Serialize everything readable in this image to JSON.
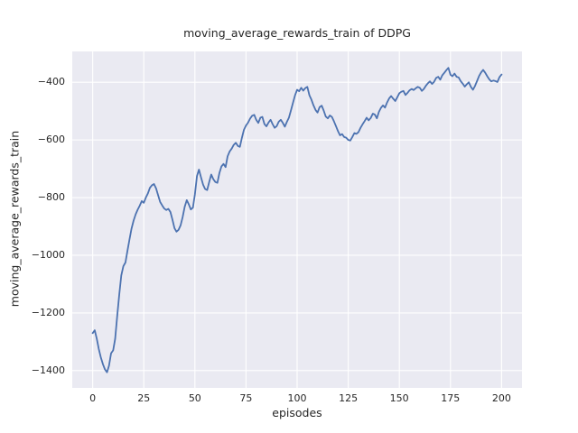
{
  "chart_data": {
    "type": "line",
    "title": "moving_average_rewards_train of DDPG",
    "xlabel": "episodes",
    "ylabel": "moving_average_rewards_train",
    "xlim": [
      -10,
      210
    ],
    "ylim": [
      -1460,
      -293
    ],
    "xticks": [
      0,
      25,
      50,
      75,
      100,
      125,
      150,
      175,
      200
    ],
    "xtick_labels": [
      "0",
      "25",
      "50",
      "75",
      "100",
      "125",
      "150",
      "175",
      "200"
    ],
    "yticks": [
      -1400,
      -1200,
      -1000,
      -800,
      -600,
      -400
    ],
    "ytick_labels": [
      "−1400",
      "−1200",
      "−1000",
      "−800",
      "−600",
      "−400"
    ],
    "grid": true,
    "legend": false,
    "plot_bg_color": "#eaeaf2",
    "grid_color": "#ffffff",
    "line_color": "#4c72b0",
    "text_color": "#262626",
    "series": [
      {
        "name": "moving_average_rewards_train",
        "x0": 0,
        "dx": 1,
        "values": [
          -1270,
          -1260,
          -1290,
          -1325,
          -1355,
          -1378,
          -1396,
          -1406,
          -1383,
          -1340,
          -1330,
          -1290,
          -1210,
          -1135,
          -1070,
          -1038,
          -1025,
          -985,
          -945,
          -908,
          -880,
          -858,
          -842,
          -828,
          -812,
          -818,
          -800,
          -785,
          -766,
          -757,
          -753,
          -768,
          -792,
          -815,
          -827,
          -838,
          -843,
          -839,
          -850,
          -876,
          -906,
          -918,
          -912,
          -896,
          -868,
          -832,
          -809,
          -823,
          -841,
          -835,
          -789,
          -725,
          -703,
          -730,
          -755,
          -770,
          -774,
          -745,
          -720,
          -736,
          -746,
          -749,
          -714,
          -692,
          -683,
          -694,
          -657,
          -640,
          -630,
          -617,
          -610,
          -621,
          -624,
          -592,
          -565,
          -550,
          -540,
          -526,
          -516,
          -513,
          -530,
          -541,
          -523,
          -520,
          -545,
          -553,
          -540,
          -530,
          -545,
          -558,
          -552,
          -537,
          -530,
          -541,
          -554,
          -537,
          -523,
          -497,
          -470,
          -445,
          -426,
          -431,
          -419,
          -429,
          -420,
          -416,
          -445,
          -460,
          -480,
          -496,
          -505,
          -486,
          -481,
          -498,
          -519,
          -525,
          -515,
          -520,
          -535,
          -552,
          -570,
          -584,
          -580,
          -590,
          -592,
          -600,
          -602,
          -590,
          -576,
          -579,
          -573,
          -558,
          -546,
          -535,
          -523,
          -532,
          -524,
          -509,
          -512,
          -525,
          -503,
          -489,
          -480,
          -488,
          -470,
          -456,
          -448,
          -457,
          -465,
          -452,
          -438,
          -433,
          -430,
          -444,
          -437,
          -428,
          -423,
          -427,
          -421,
          -416,
          -419,
          -430,
          -423,
          -412,
          -403,
          -397,
          -406,
          -398,
          -385,
          -381,
          -391,
          -376,
          -367,
          -358,
          -350,
          -374,
          -379,
          -370,
          -381,
          -383,
          -396,
          -405,
          -415,
          -407,
          -400,
          -416,
          -426,
          -413,
          -396,
          -378,
          -366,
          -357,
          -367,
          -379,
          -390,
          -397,
          -394,
          -396,
          -399,
          -382,
          -373
        ]
      }
    ]
  }
}
